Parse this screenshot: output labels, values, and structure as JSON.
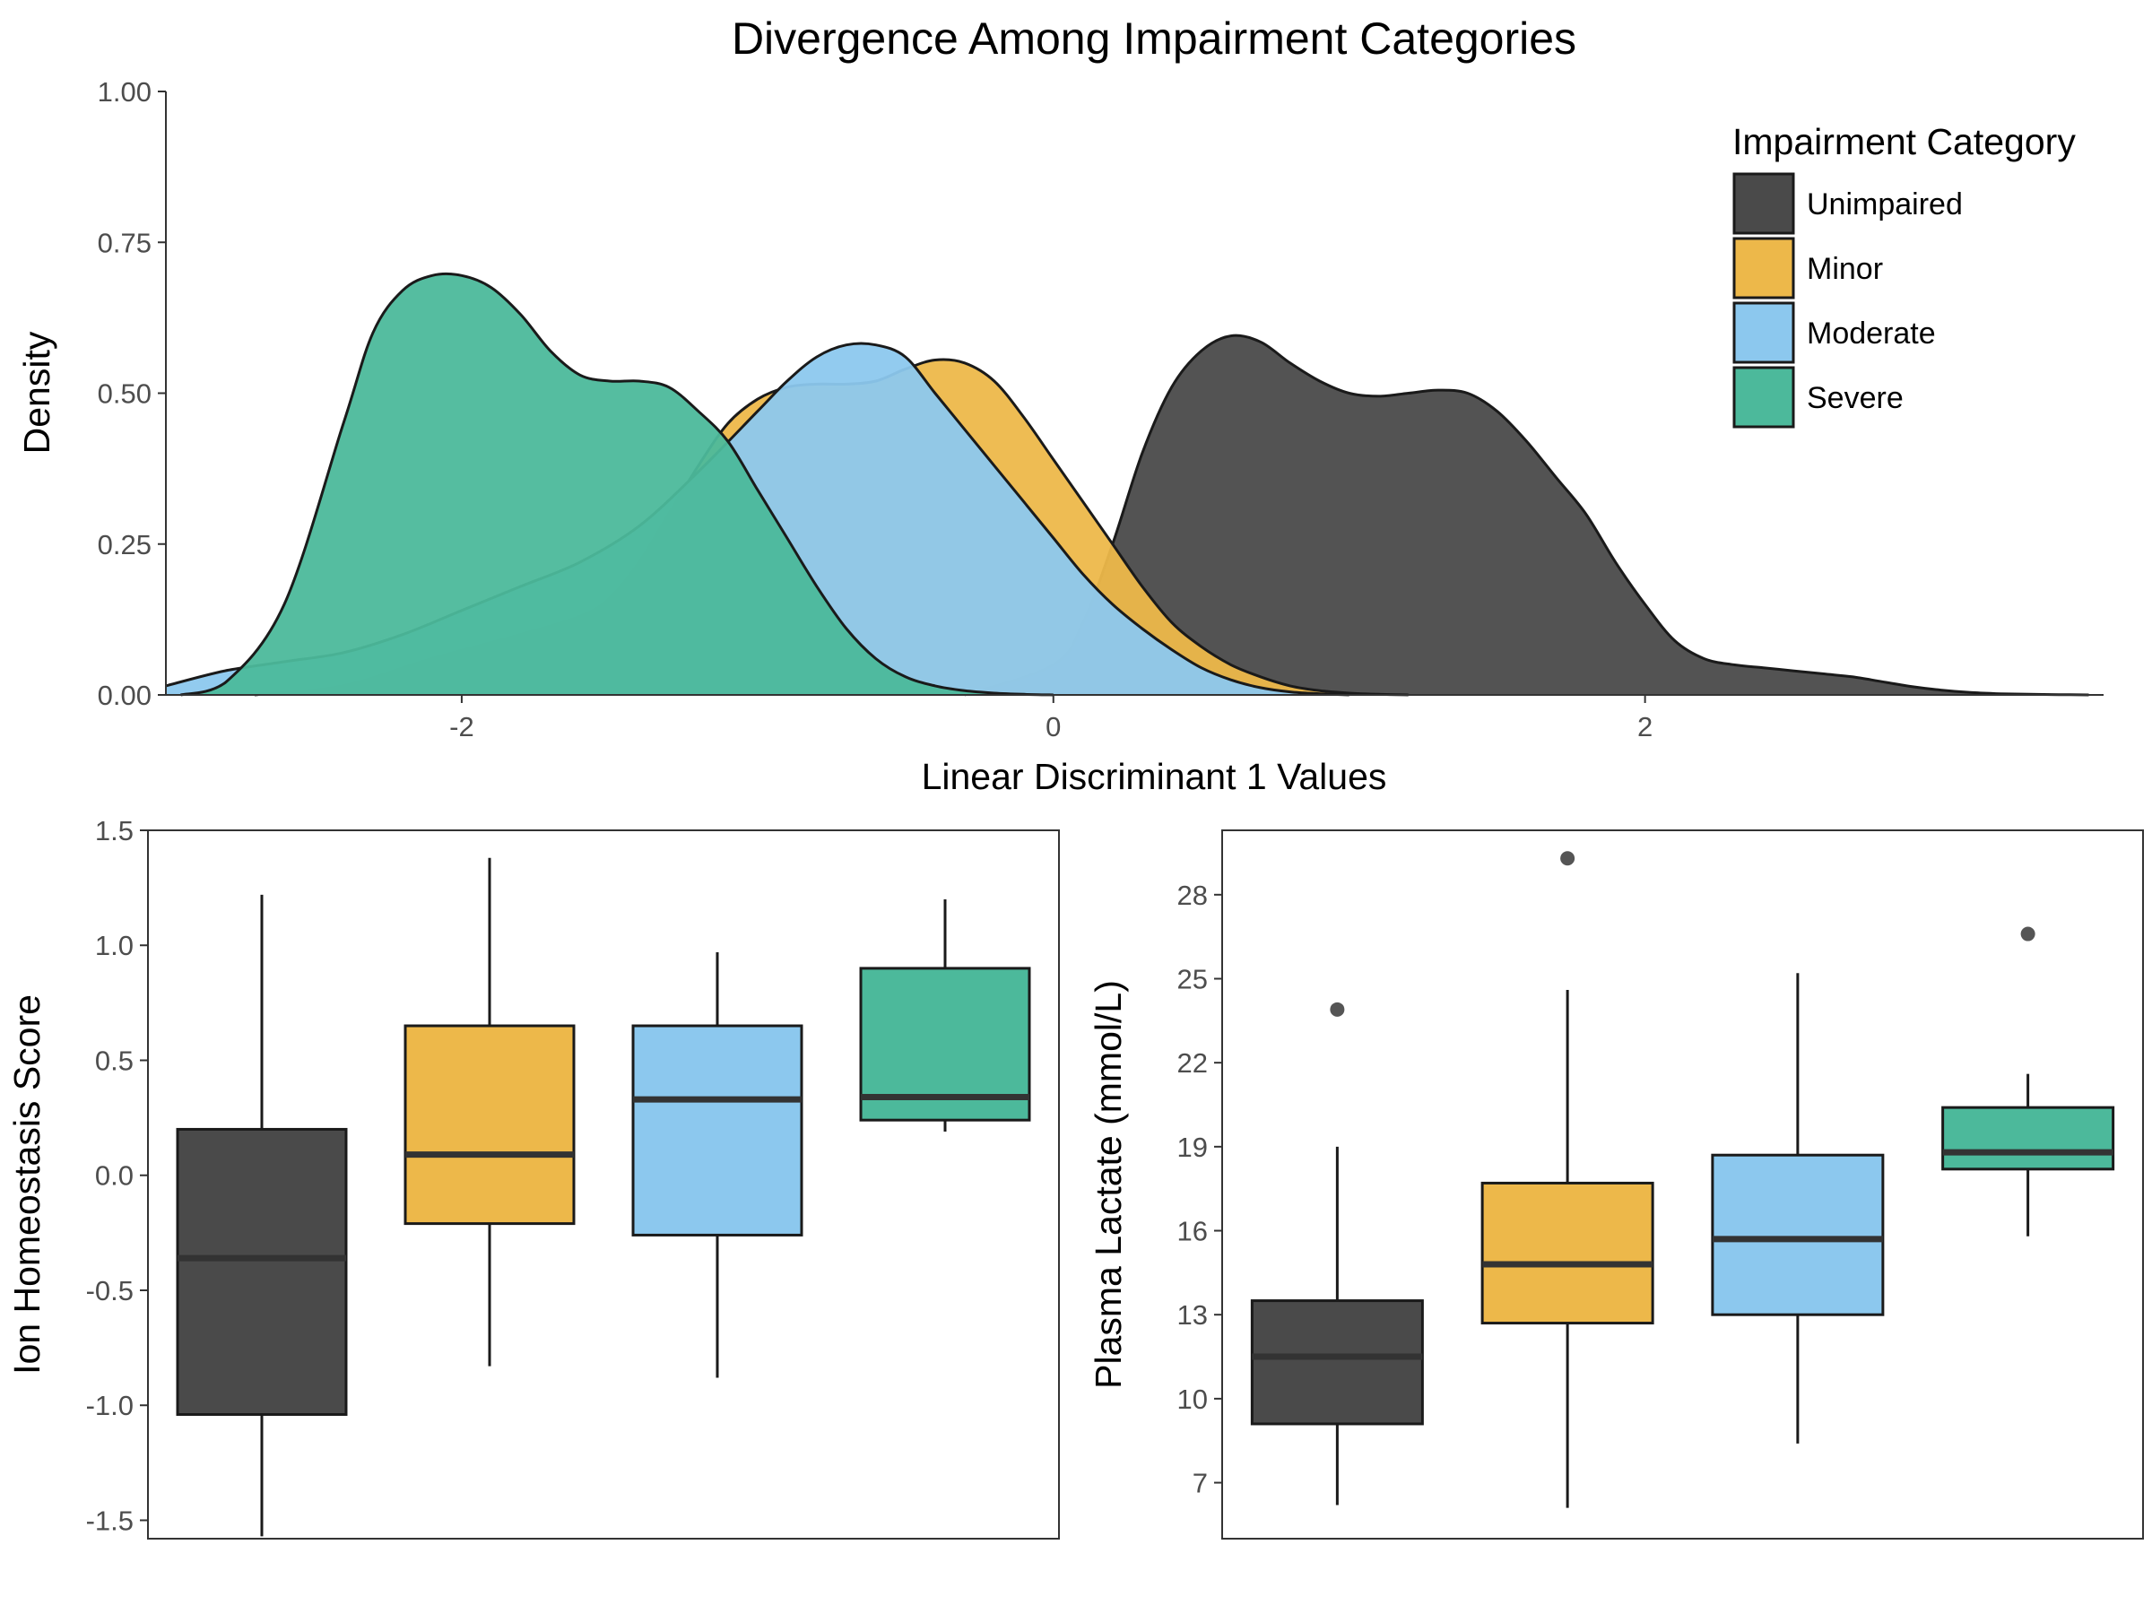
{
  "title": "Divergence Among Impairment Categories",
  "colors": {
    "Unimpaired": "#4a4a4a",
    "Minor": "#edb84a",
    "Moderate": "#8cc8ee",
    "Severe": "#4cb99b",
    "outline": "#1a1a1a",
    "median": "#333333"
  },
  "legend": {
    "title": "Impairment Category",
    "items": [
      "Unimpaired",
      "Minor",
      "Moderate",
      "Severe"
    ]
  },
  "chart_data": [
    {
      "type": "area",
      "subtype": "density",
      "xlabel": "Linear Discriminant 1 Values",
      "ylabel": "Density",
      "xlim": [
        -3.0,
        3.55
      ],
      "ylim": [
        0,
        1.0
      ],
      "xticks": [
        -2,
        0,
        2
      ],
      "xtick_labels": [
        "-2",
        "0",
        "2"
      ],
      "yticks": [
        0,
        0.25,
        0.5,
        0.75,
        1.0
      ],
      "ytick_labels": [
        "0.00",
        "0.25",
        "0.50",
        "0.75",
        "1.00"
      ],
      "grid": false,
      "legend_position": "top-right",
      "series": [
        {
          "name": "Unimpaired",
          "x": [
            -0.3,
            0.0,
            0.1,
            0.2,
            0.3,
            0.4,
            0.5,
            0.6,
            0.7,
            0.8,
            0.9,
            1.0,
            1.1,
            1.2,
            1.3,
            1.4,
            1.5,
            1.6,
            1.7,
            1.8,
            1.9,
            2.0,
            2.1,
            2.2,
            2.3,
            2.4,
            2.5,
            2.6,
            2.7,
            2.8,
            2.9,
            3.0,
            3.1,
            3.2,
            3.3,
            3.4,
            3.5
          ],
          "y": [
            0.0,
            0.05,
            0.12,
            0.25,
            0.4,
            0.51,
            0.57,
            0.595,
            0.585,
            0.55,
            0.52,
            0.5,
            0.495,
            0.5,
            0.505,
            0.5,
            0.47,
            0.42,
            0.36,
            0.3,
            0.22,
            0.15,
            0.09,
            0.06,
            0.05,
            0.045,
            0.04,
            0.035,
            0.03,
            0.022,
            0.014,
            0.008,
            0.004,
            0.002,
            0.001,
            0.0005,
            0.0
          ]
        },
        {
          "name": "Minor",
          "x": [
            -2.7,
            -2.4,
            -2.1,
            -1.8,
            -1.6,
            -1.5,
            -1.4,
            -1.3,
            -1.2,
            -1.1,
            -1.0,
            -0.9,
            -0.8,
            -0.7,
            -0.6,
            -0.5,
            -0.4,
            -0.3,
            -0.2,
            -0.1,
            0.0,
            0.1,
            0.2,
            0.3,
            0.4,
            0.5,
            0.6,
            0.7,
            0.8,
            0.9,
            1.0,
            1.1,
            1.2
          ],
          "y": [
            0.0,
            0.015,
            0.06,
            0.1,
            0.13,
            0.16,
            0.22,
            0.3,
            0.38,
            0.45,
            0.49,
            0.51,
            0.515,
            0.515,
            0.52,
            0.54,
            0.555,
            0.55,
            0.52,
            0.46,
            0.39,
            0.32,
            0.25,
            0.18,
            0.12,
            0.08,
            0.05,
            0.03,
            0.015,
            0.007,
            0.003,
            0.001,
            0.0
          ]
        },
        {
          "name": "Moderate",
          "x": [
            -3.0,
            -2.8,
            -2.6,
            -2.4,
            -2.2,
            -2.0,
            -1.8,
            -1.6,
            -1.4,
            -1.2,
            -1.0,
            -0.9,
            -0.8,
            -0.7,
            -0.6,
            -0.5,
            -0.4,
            -0.3,
            -0.2,
            -0.1,
            0.0,
            0.1,
            0.2,
            0.3,
            0.4,
            0.5,
            0.6,
            0.7,
            0.8,
            0.9,
            1.0
          ],
          "y": [
            0.015,
            0.04,
            0.055,
            0.07,
            0.1,
            0.14,
            0.18,
            0.22,
            0.28,
            0.37,
            0.47,
            0.52,
            0.56,
            0.58,
            0.58,
            0.56,
            0.5,
            0.44,
            0.38,
            0.32,
            0.26,
            0.2,
            0.15,
            0.11,
            0.075,
            0.045,
            0.025,
            0.012,
            0.005,
            0.002,
            0.0
          ]
        },
        {
          "name": "Severe",
          "x": [
            -2.95,
            -2.8,
            -2.6,
            -2.4,
            -2.3,
            -2.2,
            -2.1,
            -2.0,
            -1.9,
            -1.8,
            -1.7,
            -1.6,
            -1.5,
            -1.4,
            -1.3,
            -1.2,
            -1.1,
            -1.0,
            -0.9,
            -0.8,
            -0.7,
            -0.6,
            -0.5,
            -0.4,
            -0.3,
            -0.2,
            -0.1,
            0.0
          ],
          "y": [
            0.0,
            0.02,
            0.15,
            0.45,
            0.6,
            0.67,
            0.695,
            0.695,
            0.675,
            0.63,
            0.57,
            0.53,
            0.52,
            0.52,
            0.51,
            0.47,
            0.42,
            0.34,
            0.26,
            0.18,
            0.11,
            0.06,
            0.03,
            0.015,
            0.007,
            0.003,
            0.001,
            0.0
          ]
        }
      ]
    },
    {
      "type": "box",
      "ylabel": "Ion Homeostasis Score",
      "ylim": [
        -1.58,
        1.5
      ],
      "yticks": [
        -1.5,
        -1.0,
        -0.5,
        0.0,
        0.5,
        1.0,
        1.5
      ],
      "ytick_labels": [
        "-1.5",
        "-1.0",
        "-0.5",
        "0.0",
        "0.5",
        "1.0",
        "1.5"
      ],
      "categories": [
        "Unimpaired",
        "Minor",
        "Moderate",
        "Severe"
      ],
      "series": [
        {
          "name": "Unimpaired",
          "min": -1.57,
          "q1": -1.04,
          "median": -0.36,
          "q3": 0.2,
          "max": 1.22,
          "outliers": []
        },
        {
          "name": "Minor",
          "min": -0.83,
          "q1": -0.21,
          "median": 0.09,
          "q3": 0.65,
          "max": 1.38,
          "outliers": []
        },
        {
          "name": "Moderate",
          "min": -0.88,
          "q1": -0.26,
          "median": 0.33,
          "q3": 0.65,
          "max": 0.97,
          "outliers": []
        },
        {
          "name": "Severe",
          "min": 0.19,
          "q1": 0.24,
          "median": 0.34,
          "q3": 0.9,
          "max": 1.2,
          "outliers": []
        }
      ]
    },
    {
      "type": "box",
      "ylabel": "Plasma Lactate (mmol/L)",
      "ylim": [
        5.0,
        30.3
      ],
      "yticks": [
        7,
        10,
        13,
        16,
        19,
        22,
        25,
        28
      ],
      "ytick_labels": [
        "7",
        "10",
        "13",
        "16",
        "19",
        "22",
        "25",
        "28"
      ],
      "categories": [
        "Unimpaired",
        "Minor",
        "Moderate",
        "Severe"
      ],
      "series": [
        {
          "name": "Unimpaired",
          "min": 6.2,
          "q1": 9.1,
          "median": 11.5,
          "q3": 13.5,
          "max": 19.0,
          "outliers": [
            23.9
          ]
        },
        {
          "name": "Minor",
          "min": 6.1,
          "q1": 12.7,
          "median": 14.8,
          "q3": 17.7,
          "max": 24.6,
          "outliers": [
            29.3
          ]
        },
        {
          "name": "Moderate",
          "min": 8.4,
          "q1": 13.0,
          "median": 15.7,
          "q3": 18.7,
          "max": 25.2,
          "outliers": []
        },
        {
          "name": "Severe",
          "min": 15.8,
          "q1": 18.2,
          "median": 18.8,
          "q3": 20.4,
          "max": 21.6,
          "outliers": [
            26.6
          ]
        }
      ]
    }
  ]
}
